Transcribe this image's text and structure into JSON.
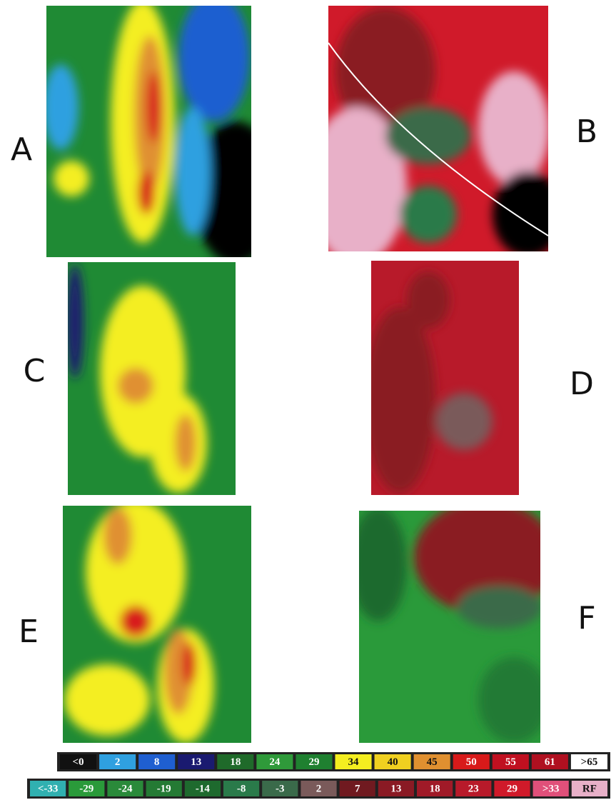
{
  "panels": [
    {
      "label": "A"
    },
    {
      "label": "B"
    },
    {
      "label": "C"
    },
    {
      "label": "D"
    },
    {
      "label": "E"
    },
    {
      "label": "F"
    }
  ],
  "legends": [
    {
      "items": [
        {
          "label": "<0",
          "color": "#111111"
        },
        {
          "label": "2",
          "color": "#2fa0e0"
        },
        {
          "label": "8",
          "color": "#1f5fd0"
        },
        {
          "label": "13",
          "color": "#1a1a70"
        },
        {
          "label": "18",
          "color": "#1f6a2a"
        },
        {
          "label": "24",
          "color": "#2f9a3a"
        },
        {
          "label": "29",
          "color": "#1f8030"
        },
        {
          "label": "34",
          "color": "#f4ee20"
        },
        {
          "label": "40",
          "color": "#f0d020"
        },
        {
          "label": "45",
          "color": "#e09030"
        },
        {
          "label": "50",
          "color": "#d81a1a"
        },
        {
          "label": "55",
          "color": "#c01020"
        },
        {
          "label": "61",
          "color": "#b01020"
        },
        {
          "label": ">65",
          "color": "#ffffff"
        }
      ]
    },
    {
      "items": [
        {
          "label": "<-33",
          "color": "#30b0b0"
        },
        {
          "label": "-29",
          "color": "#2a9a3a"
        },
        {
          "label": "-24",
          "color": "#2a8a3a"
        },
        {
          "label": "-19",
          "color": "#247a34"
        },
        {
          "label": "-14",
          "color": "#1e6a2e"
        },
        {
          "label": "-8",
          "color": "#2a7a4a"
        },
        {
          "label": "-3",
          "color": "#3a6a4a"
        },
        {
          "label": "2",
          "color": "#7a5a5a"
        },
        {
          "label": "7",
          "color": "#701a20"
        },
        {
          "label": "13",
          "color": "#8a1a24"
        },
        {
          "label": "18",
          "color": "#a01a28"
        },
        {
          "label": "23",
          "color": "#b81a2a"
        },
        {
          "label": "29",
          "color": "#d01a2a"
        },
        {
          "label": ">33",
          "color": "#e0507a"
        },
        {
          "label": "RF",
          "color": "#e8b0c8"
        }
      ]
    }
  ]
}
